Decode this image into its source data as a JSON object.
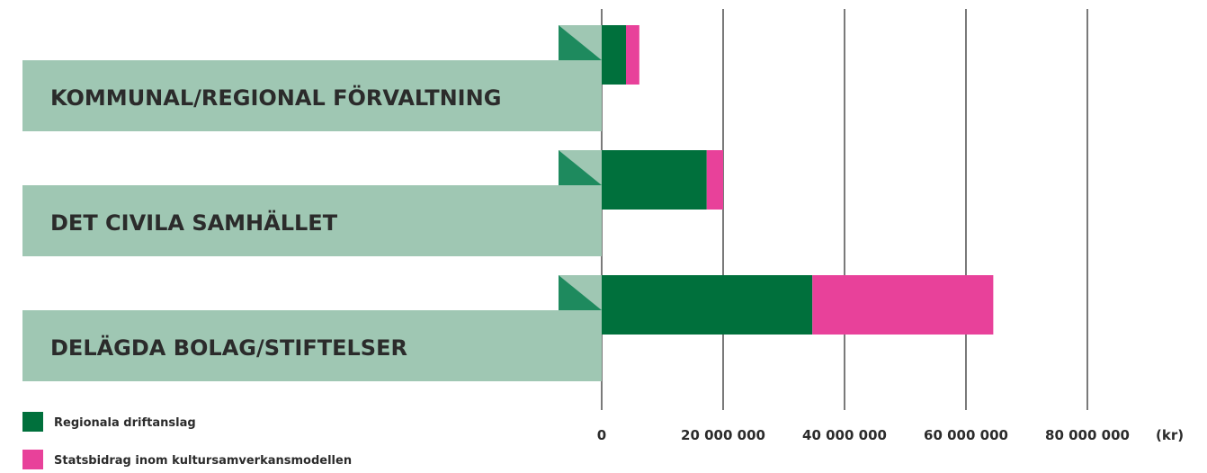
{
  "chart_data": {
    "type": "bar",
    "orientation": "horizontal",
    "stacked": true,
    "categories": [
      "KOMMUNAL/REGIONAL FÖRVALTNING",
      "DET CIVILA SAMHÄLLET",
      "DELÄGDA BOLAG/STIFTELSER"
    ],
    "series": [
      {
        "name": "Regionala driftanslag",
        "color": "#00703c",
        "values": [
          4000000,
          17300000,
          34700000
        ]
      },
      {
        "name": "Statsbidrag inom kultursamverkansmodellen",
        "color": "#e8419a",
        "values": [
          2200000,
          2700000,
          29800000
        ]
      }
    ],
    "x_ticks": [
      0,
      20000000,
      40000000,
      60000000,
      80000000
    ],
    "x_tick_labels": [
      "0",
      "20 000 000",
      "40 000 000",
      "60 000 000",
      "80 000 000"
    ],
    "unit_label": "(kr)",
    "xlim": [
      0,
      80000000
    ],
    "grid": true,
    "legend_position": "bottom-left"
  },
  "colors": {
    "category_band": "#9fc7b3",
    "corner_dark": "#1e8a5e",
    "grid": "#333333",
    "text": "#2b2b2b"
  }
}
